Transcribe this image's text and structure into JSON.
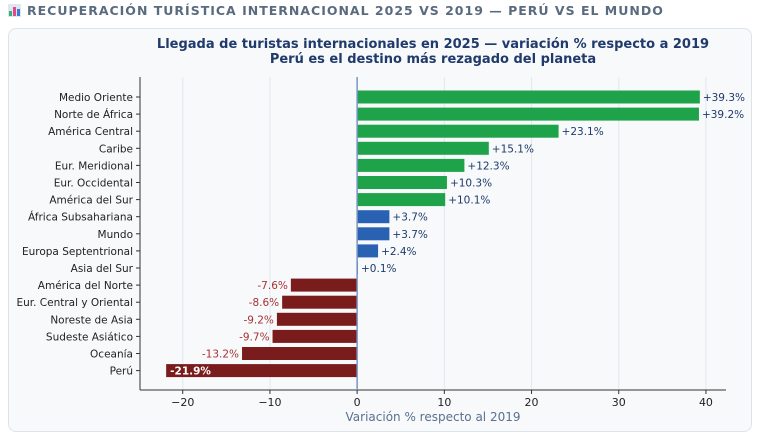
{
  "header": {
    "title": "RECUPERACIÓN TURÍSTICA INTERNACIONAL 2025 VS 2019 — PERÚ VS EL MUNDO",
    "icon": "bar-chart-icon"
  },
  "chart_data": {
    "type": "bar",
    "orientation": "horizontal",
    "title": "Llegada de turistas internacionales en 2025 — variación % respecto a 2019",
    "subtitle": "Perú es el destino más rezagado del planeta",
    "xlabel": "Variación % respecto al 2019",
    "ylabel": "",
    "xlim": [
      -24.9,
      42.3
    ],
    "xticks": [
      -20,
      -10,
      0,
      10,
      20,
      30,
      40
    ],
    "grid": "vertical",
    "categories": [
      "Medio Oriente",
      "Norte de África",
      "América Central",
      "Caribe",
      "Eur. Meridional",
      "Eur. Occidental",
      "América del Sur",
      "África Subsahariana",
      "Mundo",
      "Europa Septentrional",
      "Asia del Sur",
      "América del Norte",
      "Eur. Central y Oriental",
      "Noreste de Asia",
      "Sudeste Asiático",
      "Oceanía",
      "Perú"
    ],
    "values": [
      39.3,
      39.2,
      23.1,
      15.1,
      12.3,
      10.3,
      10.1,
      3.7,
      3.7,
      2.4,
      0.1,
      -7.6,
      -8.6,
      -9.2,
      -9.7,
      -13.2,
      -21.9
    ],
    "labels": [
      "+39.3%",
      "+39.2%",
      "+23.1%",
      "+15.1%",
      "+12.3%",
      "+10.3%",
      "+10.1%",
      "+3.7%",
      "+3.7%",
      "+2.4%",
      "+0.1%",
      "-7.6%",
      "-8.6%",
      "-9.2%",
      "-9.7%",
      "-13.2%",
      "-21.9%"
    ],
    "colors": {
      "strong_growth": "#1ea34a",
      "moderate_growth": "#2a62b3",
      "decline": "#7b1c1c",
      "positive_label": "#1f3a6b",
      "negative_label": "#a83232"
    }
  }
}
